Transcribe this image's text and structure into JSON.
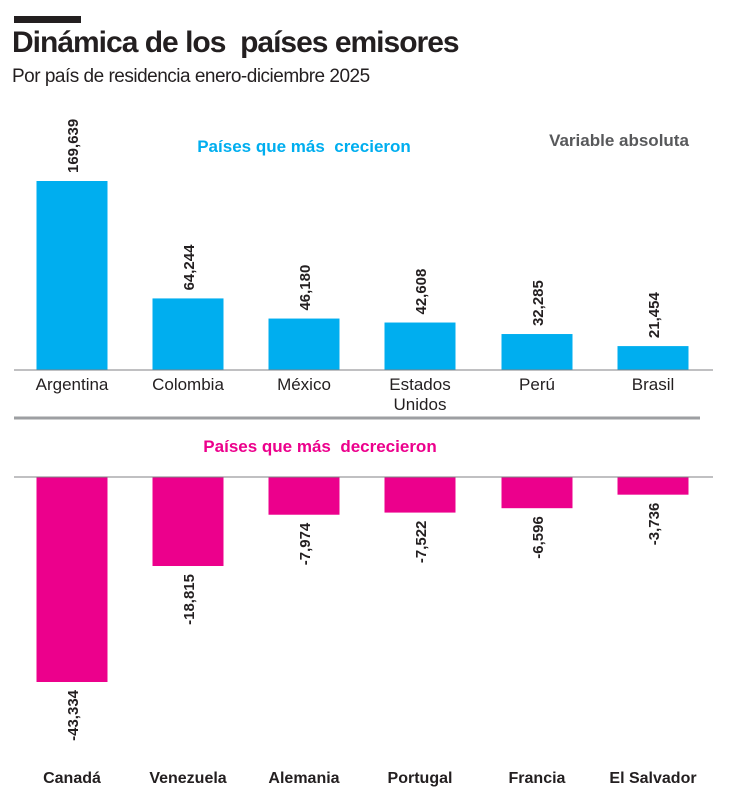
{
  "title": "Dinámica de los  países emisores",
  "subtitle": "Por país de residencia enero-diciembre 2025",
  "note": "Variable absoluta",
  "chart_data": [
    {
      "type": "bar",
      "title": "Países que más  crecieron",
      "categories": [
        "Argentina",
        "Colombia",
        "México",
        "Estados Unidos",
        "Perú",
        "Brasil"
      ],
      "values": [
        169639,
        64244,
        46180,
        42608,
        32285,
        21454
      ],
      "data_labels": [
        "169,639",
        "64,244",
        "46,180",
        "42,608",
        "32,285",
        "21,454"
      ],
      "color": "#00aeef"
    },
    {
      "type": "bar",
      "title": "Países que más  decrecieron",
      "categories": [
        "Canadá",
        "Venezuela",
        "Alemania",
        "Portugal",
        "Francia",
        "El Salvador"
      ],
      "values": [
        -43334,
        -18815,
        -7974,
        -7522,
        -6596,
        -3736
      ],
      "data_labels": [
        "-43,334",
        "-18,815",
        "-7,974",
        "-7,522",
        "-6,596",
        "-3,736"
      ],
      "color": "#ec008c"
    }
  ]
}
